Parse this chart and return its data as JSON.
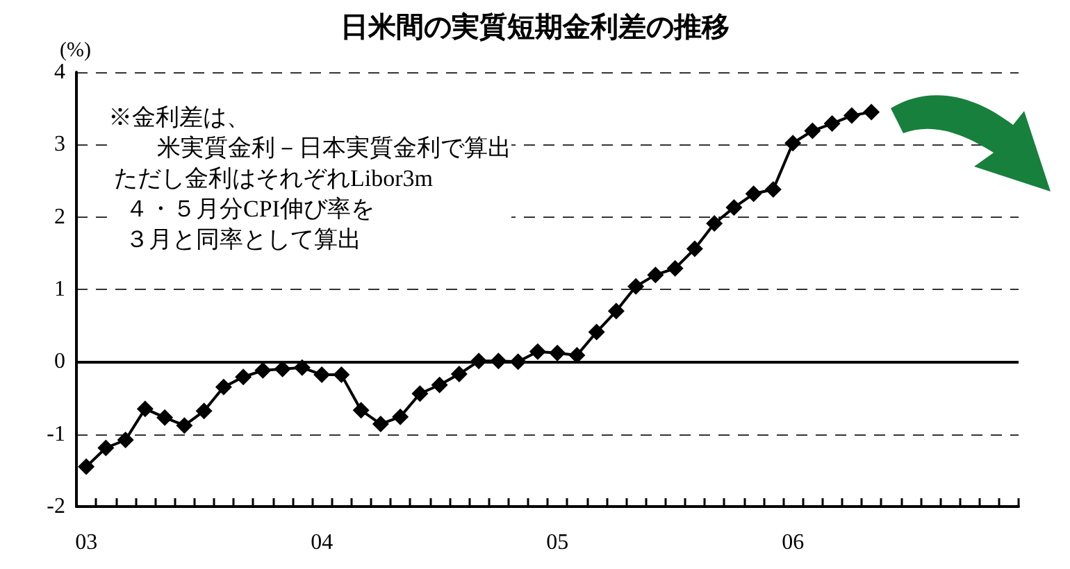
{
  "chart_data": {
    "type": "line",
    "title": "日米間の実質短期金利差の推移",
    "ylabel": "(%)",
    "annotations": [
      "※金利差は、",
      "　米実質金利－日本実質金利で算出",
      "ただし金利はそれぞれLibor3m",
      "４・５月分CPI伸び率を",
      "３月と同率として算出"
    ],
    "categories": [
      "03",
      null,
      null,
      null,
      null,
      null,
      null,
      null,
      null,
      null,
      null,
      null,
      "04",
      null,
      null,
      null,
      null,
      null,
      null,
      null,
      null,
      null,
      null,
      null,
      "05",
      null,
      null,
      null,
      null,
      null,
      null,
      null,
      null,
      null,
      null,
      null,
      "06",
      null,
      null,
      null,
      null,
      null,
      null,
      null,
      null,
      null,
      null,
      null
    ],
    "series": [
      {
        "color": "#000000",
        "values": [
          -1.45,
          -1.19,
          -1.08,
          -0.65,
          -0.77,
          -0.88,
          -0.68,
          -0.35,
          -0.21,
          -0.12,
          -0.1,
          -0.08,
          -0.18,
          -0.18,
          -0.67,
          -0.86,
          -0.76,
          -0.44,
          -0.32,
          -0.17,
          0.01,
          0.01,
          0.0,
          0.14,
          0.12,
          0.09,
          0.41,
          0.7,
          1.04,
          1.2,
          1.29,
          1.56,
          1.91,
          2.13,
          2.32,
          2.38,
          3.02,
          3.19,
          3.29,
          3.4,
          3.45,
          null,
          null,
          null,
          null,
          null,
          null,
          null
        ]
      }
    ],
    "ylim": [
      -2,
      4
    ],
    "yticks": [
      -2,
      -1,
      0,
      1,
      2,
      3,
      4
    ],
    "grid": "y",
    "marker": "diamond",
    "line_style": "solid",
    "ref_lines": [
      {
        "axis": "y",
        "value": 0,
        "color": "#000000",
        "line_style": "solid"
      }
    ]
  }
}
